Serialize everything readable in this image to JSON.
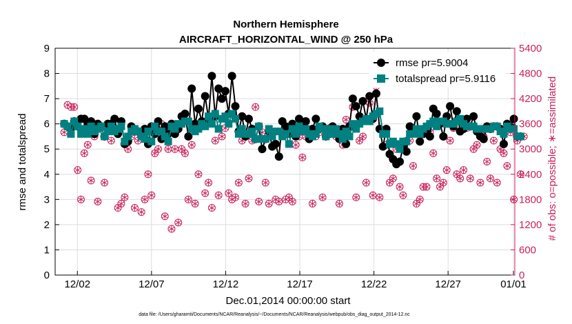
{
  "chart_data": {
    "type": "line",
    "title": "Northern Hemisphere",
    "subtitle": "AIRCRAFT_HORIZONTAL_WIND @ 250 hPa",
    "xlabel": "Dec.01,2014 00:00:00 start",
    "ylabel": "rmse and totalspread",
    "ylabel_right": "# of obs: o=possible; ∗=assimilated",
    "footnote": "data file: /Users/gharamti/Documents/NCAR/Reanalysis/~/Documents/NCAR/Reanalysis/webpub/obs_diag_output_2014-12.nc",
    "xlim": [
      0.5,
      31.5
    ],
    "x_ticks": [
      {
        "x": 2,
        "label": "12/02"
      },
      {
        "x": 7,
        "label": "12/07"
      },
      {
        "x": 12,
        "label": "12/12"
      },
      {
        "x": 17,
        "label": "12/17"
      },
      {
        "x": 22,
        "label": "12/22"
      },
      {
        "x": 27,
        "label": "12/27"
      },
      {
        "x": 32,
        "label": "01/01"
      }
    ],
    "ylim": [
      0,
      9
    ],
    "y_ticks": [
      "0",
      "1",
      "2",
      "3",
      "4",
      "5",
      "6",
      "7",
      "8",
      "9"
    ],
    "ylim_right": [
      0,
      5400
    ],
    "y_ticks_right": [
      "0",
      "600",
      "1200",
      "1800",
      "2400",
      "3000",
      "3600",
      "4200",
      "4800",
      "5400"
    ],
    "grid": true,
    "legend_position": "top-right",
    "colors": {
      "rmse": "#000000",
      "spread": "#008080",
      "obs": "#C8205A",
      "grid": "#dcdcdc"
    },
    "series": [
      {
        "name": "rmse",
        "legend": "rmse pr=5.9004",
        "values": [
          6.0,
          5.9,
          5.8,
          6.1,
          5.9,
          6.2,
          6.2,
          6.0,
          6.1,
          5.6,
          6.0,
          5.9,
          5.5,
          6.0,
          6.0,
          6.2,
          5.6,
          6.1,
          5.2,
          5.3,
          5.9,
          5.7,
          5.7,
          5.5,
          5.8,
          5.2,
          5.9,
          5.6,
          6.1,
          5.4,
          5.9,
          5.6,
          6.0,
          5.6,
          5.8,
          6.3,
          6.4,
          5.5,
          7.4,
          6.0,
          6.6,
          6.1,
          7.1,
          6.2,
          7.9,
          6.3,
          7.4,
          7.0,
          7.3,
          6.4,
          7.9,
          6.7,
          5.7,
          6.3,
          5.5,
          6.2,
          5.8,
          5.4,
          5.9,
          5.0,
          5.4,
          5.7,
          5.1,
          5.2,
          4.7,
          6.1,
          5.9,
          5.6,
          6.0,
          5.5,
          6.2,
          5.9,
          6.1,
          5.4,
          5.8,
          6.2,
          5.8,
          5.9,
          5.5,
          5.6,
          5.9,
          5.6,
          5.4,
          5.8,
          5.2,
          5.9,
          7.0,
          6.7,
          6.3,
          6.9,
          6.2,
          7.1,
          6.2,
          7.2,
          5.8,
          5.1,
          5.8,
          4.8,
          4.6,
          4.4,
          4.5,
          5.1,
          4.9,
          5.9,
          5.8,
          6.3,
          5.3,
          5.6,
          5.8,
          5.5,
          6.6,
          6.4,
          6.0,
          5.5,
          6.3,
          6.7,
          5.9,
          6.5,
          5.7,
          5.8,
          6.2,
          5.9,
          6.3,
          5.7,
          5.5,
          5.4,
          5.9,
          5.8,
          5.9,
          5.9,
          5.8,
          5.2,
          6.0,
          5.9,
          6.2,
          5.5,
          5.5
        ]
      },
      {
        "name": "totalspread",
        "legend": "totalspread pr=5.9116",
        "values": [
          6.0,
          5.9,
          5.6,
          6.1,
          5.9,
          5.6,
          5.8,
          5.6,
          5.9,
          5.7,
          5.8,
          5.9,
          5.5,
          5.7,
          5.9,
          5.7,
          5.8,
          5.9,
          5.3,
          5.5,
          5.7,
          5.8,
          5.7,
          5.5,
          5.4,
          5.7,
          5.3,
          5.9,
          5.7,
          5.7,
          5.5,
          5.3,
          5.9,
          5.8,
          6.0,
          6.0,
          6.1,
          6.1,
          5.8,
          5.7,
          5.8,
          6.0,
          5.9,
          6.3,
          6.0,
          6.4,
          5.8,
          6.2,
          6.3,
          6.0,
          6.4,
          6.2,
          5.6,
          5.8,
          5.6,
          5.6,
          5.7,
          5.4,
          5.9,
          5.4,
          5.4,
          5.8,
          5.5,
          5.7,
          5.7,
          5.5,
          5.6,
          5.2,
          5.8,
          5.6,
          5.9,
          5.7,
          5.8,
          5.6,
          5.5,
          5.6,
          5.9,
          5.8,
          5.5,
          5.8,
          5.6,
          5.8,
          5.6,
          5.4,
          5.7,
          5.5,
          6.0,
          5.8,
          6.0,
          6.1,
          6.2,
          6.1,
          6.3,
          6.4,
          6.5,
          5.6,
          5.6,
          5.2,
          5.3,
          5.2,
          5.0,
          5.3,
          5.3,
          5.6,
          5.6,
          5.8,
          5.6,
          5.8,
          5.9,
          6.0,
          6.1,
          5.9,
          6.1,
          6.1,
          6.0,
          6.0,
          6.0,
          6.1,
          6.2,
          6.0,
          5.9,
          5.9,
          5.9,
          5.8,
          5.8,
          5.8,
          5.8,
          5.8,
          5.9,
          5.9,
          5.7,
          5.6,
          5.9,
          5.8,
          5.8,
          5.5,
          5.5
        ]
      },
      {
        "name": "obs_possible",
        "values": [
          3400,
          4050,
          4000,
          4000,
          2500,
          1800,
          2900,
          3100,
          2250,
          3300,
          1750,
          3500,
          2200,
          3600,
          3200,
          3500,
          1600,
          1700,
          1850,
          3000,
          3300,
          1600,
          3200,
          1500,
          1800,
          2400,
          1900,
          2900,
          3000,
          3600,
          1400,
          3000,
          1100,
          3000,
          1250,
          3000,
          2900,
          1800,
          3100,
          1700,
          2400,
          3600,
          1950,
          2200,
          1600,
          3200,
          1900,
          3300,
          3500,
          1950,
          1800,
          1850,
          2200,
          3200,
          1700,
          2300,
          3200,
          4000,
          1750,
          3400,
          2200,
          1700,
          3300,
          1800,
          1750,
          3300,
          1800,
          1850,
          1750,
          3100,
          3300,
          2800,
          3300,
          3400,
          1700,
          3300,
          3400,
          1850,
          3300,
          3500,
          3400,
          3300,
          1700,
          3100,
          3700,
          3500,
          4000,
          1850,
          3200,
          3300,
          2200,
          4100,
          1900,
          4500,
          1850,
          3400,
          3100,
          2200,
          2300,
          3000,
          2100,
          1900,
          3200,
          3200,
          2600,
          1700,
          1800,
          2100,
          2100,
          3400,
          2900,
          2300,
          2100,
          2200,
          2500,
          3200,
          3500,
          2400,
          2300,
          2500,
          3500,
          2300,
          3000,
          3100,
          2200,
          3300,
          2700,
          2300,
          3200,
          2200,
          3000,
          2900,
          2600,
          3400,
          1800,
          3200,
          2400,
          3300
        ]
      }
    ]
  }
}
